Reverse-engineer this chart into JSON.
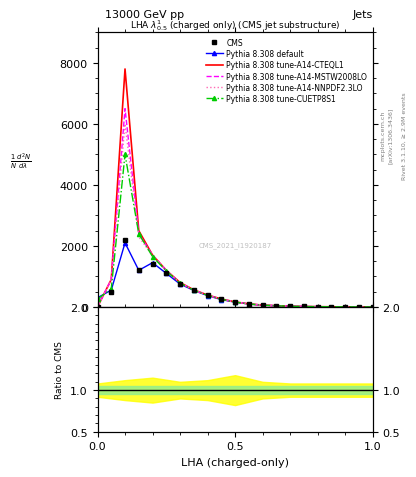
{
  "title_top": "13000 GeV pp",
  "title_right": "Jets",
  "plot_title": "LHA $\\lambda^{1}_{0.5}$ (charged only) (CMS jet substructure)",
  "xlabel": "LHA (charged-only)",
  "ylabel_main": "1/mathrm{d}N mathrm{d}^{2}N/mathrm{d}lambda",
  "ylabel_ratio": "Ratio to CMS",
  "right_label1": "Rivet 3.1.10, \\u2265 2.9M events",
  "right_label2": "[arXiv:1306.3436]",
  "right_label3": "mcplots.cern.ch",
  "watermark": "CMS_2021_I1920187",
  "x": [
    0.0,
    0.05,
    0.1,
    0.15,
    0.2,
    0.25,
    0.3,
    0.35,
    0.4,
    0.45,
    0.5,
    0.55,
    0.6,
    0.65,
    0.7,
    0.75,
    0.8,
    0.85,
    0.9,
    0.95,
    1.0
  ],
  "cms_y": [
    0,
    500,
    2200,
    1200,
    1400,
    1100,
    750,
    550,
    380,
    250,
    160,
    100,
    60,
    40,
    25,
    15,
    10,
    5,
    2,
    1,
    0
  ],
  "pythia_default_y": [
    300,
    550,
    2100,
    1200,
    1450,
    1100,
    750,
    540,
    370,
    240,
    155,
    95,
    55,
    38,
    22,
    12,
    8,
    4,
    2,
    1,
    0
  ],
  "cteq_y": [
    0,
    900,
    7800,
    2500,
    1700,
    1200,
    800,
    560,
    390,
    260,
    165,
    100,
    60,
    40,
    24,
    14,
    9,
    4,
    2,
    1,
    0
  ],
  "mstw_y": [
    0,
    900,
    6500,
    2400,
    1700,
    1200,
    790,
    555,
    385,
    255,
    162,
    98,
    58,
    39,
    23,
    13,
    8,
    4,
    2,
    1,
    0
  ],
  "nnpdf_y": [
    0,
    900,
    6000,
    2300,
    1680,
    1190,
    785,
    552,
    383,
    253,
    161,
    97,
    57,
    38,
    22,
    12,
    8,
    4,
    2,
    1,
    0
  ],
  "cuetp_y": [
    250,
    600,
    5000,
    2400,
    1650,
    1180,
    780,
    548,
    380,
    252,
    160,
    97,
    57,
    38,
    22,
    12,
    8,
    4,
    2,
    1,
    0
  ],
  "ylim_main": [
    0,
    9000
  ],
  "ylim_ratio": [
    0.5,
    2.0
  ],
  "color_cms": "#000000",
  "color_default": "#0000ff",
  "color_cteq": "#ff0000",
  "color_mstw": "#ff00ff",
  "color_nnpdf": "#ff69b4",
  "color_cuetp": "#00cc00",
  "green_band_lower": 0.95,
  "green_band_upper": 1.05,
  "yellow_band_x": [
    0.0,
    0.1,
    0.2,
    0.3,
    0.4,
    0.5,
    0.6,
    0.7,
    0.8,
    0.9,
    1.0
  ],
  "yellow_band_lower": [
    0.92,
    0.88,
    0.85,
    0.9,
    0.88,
    0.82,
    0.9,
    0.92,
    0.92,
    0.92,
    0.92
  ],
  "yellow_band_upper": [
    1.08,
    1.12,
    1.15,
    1.1,
    1.12,
    1.18,
    1.1,
    1.08,
    1.08,
    1.08,
    1.08
  ]
}
